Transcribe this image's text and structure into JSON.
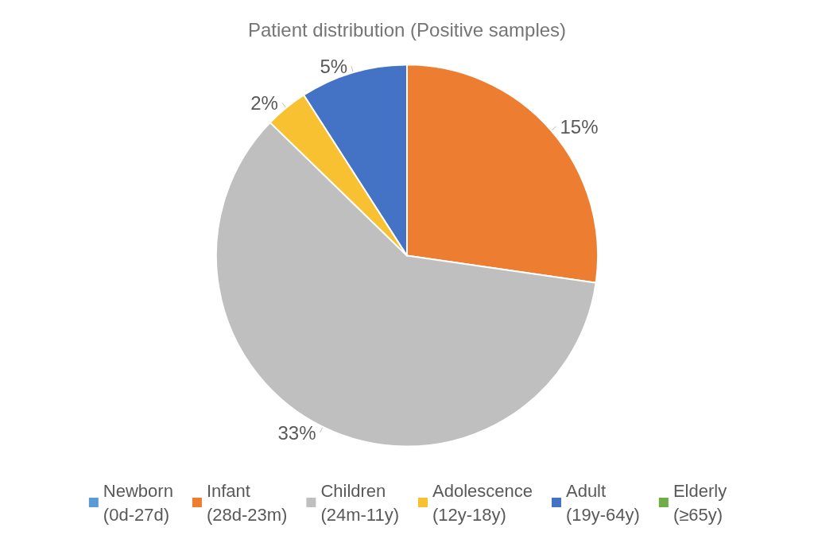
{
  "chart_data": {
    "type": "pie",
    "title": "Patient distribution (Positive samples)",
    "categories": [
      "Newborn (0d-27d)",
      "Infant (28d-23m)",
      "Children (24m-11y)",
      "Adolescence (12y-18y)",
      "Adult (19y-64y)",
      "Elderly (≥65y)"
    ],
    "values": [
      0,
      15,
      33,
      2,
      5,
      0
    ],
    "value_labels": [
      null,
      "15%",
      "33%",
      "2%",
      "5%",
      null
    ],
    "colors": [
      "#5b9bd5",
      "#ed7d31",
      "#bfbfbf",
      "#f8c131",
      "#4472c4",
      "#70ad47"
    ],
    "legend": "bottom"
  }
}
